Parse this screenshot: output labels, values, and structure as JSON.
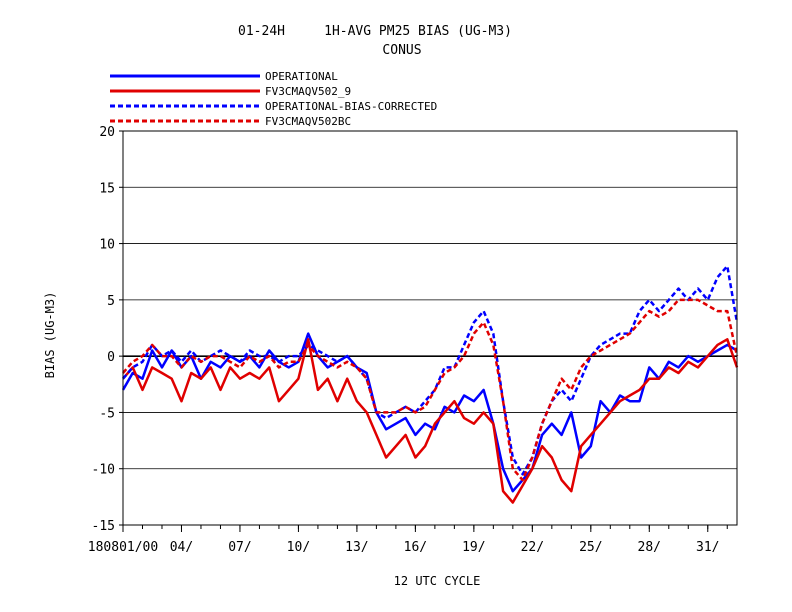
{
  "chart_data": {
    "type": "line",
    "title": "01-24H     1H-AVG PM25 BIAS (UG-M3)",
    "subtitle": "CONUS",
    "xlabel": "12 UTC CYCLE",
    "ylabel": "BIAS (UG-M3)",
    "ylim": [
      -15,
      20
    ],
    "yticks": [
      -15,
      -10,
      -5,
      0,
      5,
      10,
      15,
      20
    ],
    "xlim": [
      0,
      31.5
    ],
    "xticks": [
      {
        "x": 0,
        "label": "180801/00"
      },
      {
        "x": 3,
        "label": "04/"
      },
      {
        "x": 6,
        "label": "07/"
      },
      {
        "x": 9,
        "label": "10/"
      },
      {
        "x": 12,
        "label": "13/"
      },
      {
        "x": 15,
        "label": "16/"
      },
      {
        "x": 18,
        "label": "19/"
      },
      {
        "x": 21,
        "label": "22/"
      },
      {
        "x": 24,
        "label": "25/"
      },
      {
        "x": 27,
        "label": "28/"
      },
      {
        "x": 30,
        "label": "31/"
      }
    ],
    "grid": "horizontal",
    "legend_position": "top-left",
    "series": [
      {
        "name": "OPERATIONAL",
        "color": "#0000ff",
        "style": "solid",
        "x": [
          0,
          0.5,
          1,
          1.5,
          2,
          2.5,
          3,
          3.5,
          4,
          4.5,
          5,
          5.5,
          6,
          6.5,
          7,
          7.5,
          8,
          8.5,
          9,
          9.5,
          10,
          10.5,
          11,
          11.5,
          12,
          12.5,
          13,
          13.5,
          14,
          14.5,
          15,
          15.5,
          16,
          16.5,
          17,
          17.5,
          18,
          18.5,
          19,
          19.5,
          20,
          20.5,
          21,
          21.5,
          22,
          22.5,
          23,
          23.5,
          24,
          24.5,
          25,
          25.5,
          26,
          26.5,
          27,
          27.5,
          28,
          28.5,
          29,
          29.5,
          30,
          30.5,
          31,
          31.5
        ],
        "y": [
          -3,
          -1.5,
          -2,
          0.5,
          -1,
          0.5,
          -1,
          0,
          -2,
          -0.5,
          -1,
          0,
          -0.5,
          0,
          -1,
          0.5,
          -0.5,
          -1,
          -0.5,
          2,
          0,
          -1,
          -0.5,
          0,
          -1,
          -1.5,
          -5,
          -6.5,
          -6,
          -5.5,
          -7,
          -6,
          -6.5,
          -4.5,
          -5,
          -3.5,
          -4,
          -3,
          -6,
          -10,
          -12,
          -11,
          -10,
          -7,
          -6,
          -7,
          -5,
          -9,
          -8,
          -4,
          -5,
          -3.5,
          -4,
          -4,
          -1,
          -2,
          -0.5,
          -1,
          0,
          -0.5,
          0,
          0.5,
          1,
          0.5
        ]
      },
      {
        "name": "FV3CMAQV502_9",
        "color": "#e00000",
        "style": "solid",
        "x": [
          0,
          0.5,
          1,
          1.5,
          2,
          2.5,
          3,
          3.5,
          4,
          4.5,
          5,
          5.5,
          6,
          6.5,
          7,
          7.5,
          8,
          8.5,
          9,
          9.5,
          10,
          10.5,
          11,
          11.5,
          12,
          12.5,
          13,
          13.5,
          14,
          14.5,
          15,
          15.5,
          16,
          16.5,
          17,
          17.5,
          18,
          18.5,
          19,
          19.5,
          20,
          20.5,
          21,
          21.5,
          22,
          22.5,
          23,
          23.5,
          24,
          24.5,
          25,
          25.5,
          26,
          26.5,
          27,
          27.5,
          28,
          28.5,
          29,
          29.5,
          30,
          30.5,
          31,
          31.5
        ],
        "y": [
          -2,
          -1,
          -3,
          -1,
          -1.5,
          -2,
          -4,
          -1.5,
          -2,
          -1,
          -3,
          -1,
          -2,
          -1.5,
          -2,
          -1,
          -4,
          -3,
          -2,
          1.5,
          -3,
          -2,
          -4,
          -2,
          -4,
          -5,
          -7,
          -9,
          -8,
          -7,
          -9,
          -8,
          -6,
          -5,
          -4,
          -5.5,
          -6,
          -5,
          -6,
          -12,
          -13,
          -11.5,
          -10,
          -8,
          -9,
          -11,
          -12,
          -8,
          -7,
          -6,
          -5,
          -4,
          -3.5,
          -3,
          -2,
          -2,
          -1,
          -1.5,
          -0.5,
          -1,
          0,
          1,
          1.5,
          -1
        ]
      },
      {
        "name": "OPERATIONAL-BIAS-CORRECTED",
        "color": "#0000ff",
        "style": "dashed",
        "x": [
          0,
          0.5,
          1,
          1.5,
          2,
          2.5,
          3,
          3.5,
          4,
          4.5,
          5,
          5.5,
          6,
          6.5,
          7,
          7.5,
          8,
          8.5,
          9,
          9.5,
          10,
          10.5,
          11,
          11.5,
          12,
          12.5,
          13,
          13.5,
          14,
          14.5,
          15,
          15.5,
          16,
          16.5,
          17,
          17.5,
          18,
          18.5,
          19,
          19.5,
          20,
          20.5,
          21,
          21.5,
          22,
          22.5,
          23,
          23.5,
          24,
          24.5,
          25,
          25.5,
          26,
          26.5,
          27,
          27.5,
          28,
          28.5,
          29,
          29.5,
          30,
          30.5,
          31,
          31.5
        ],
        "y": [
          -2,
          -1,
          -0.5,
          1,
          0,
          0.5,
          -0.5,
          0.5,
          -0.5,
          0,
          0.5,
          0,
          -0.5,
          0.5,
          0,
          0,
          -0.5,
          0,
          0,
          1,
          0.5,
          0,
          -0.5,
          0,
          -1,
          -2,
          -5,
          -5.5,
          -5,
          -4.5,
          -5,
          -4,
          -3,
          -1,
          -1,
          1,
          3,
          4,
          2,
          -4,
          -9,
          -10.5,
          -9,
          -6,
          -4,
          -3,
          -4,
          -2,
          0,
          1,
          1.5,
          2,
          2,
          4,
          5,
          4,
          5,
          6,
          5,
          6,
          5,
          7,
          8,
          3
        ]
      },
      {
        "name": "FV3CMAQV502BC",
        "color": "#e00000",
        "style": "dashed",
        "x": [
          0,
          0.5,
          1,
          1.5,
          2,
          2.5,
          3,
          3.5,
          4,
          4.5,
          5,
          5.5,
          6,
          6.5,
          7,
          7.5,
          8,
          8.5,
          9,
          9.5,
          10,
          10.5,
          11,
          11.5,
          12,
          12.5,
          13,
          13.5,
          14,
          14.5,
          15,
          15.5,
          16,
          16.5,
          17,
          17.5,
          18,
          18.5,
          19,
          19.5,
          20,
          20.5,
          21,
          21.5,
          22,
          22.5,
          23,
          23.5,
          24,
          24.5,
          25,
          25.5,
          26,
          26.5,
          27,
          27.5,
          28,
          28.5,
          29,
          29.5,
          30,
          30.5,
          31,
          31.5
        ],
        "y": [
          -1.5,
          -0.5,
          0,
          1,
          0,
          0,
          -1,
          0,
          -0.5,
          0,
          0,
          -0.5,
          -1,
          0,
          -0.5,
          0,
          -1,
          -0.5,
          -0.5,
          1,
          0,
          -0.5,
          -1,
          -0.5,
          -1,
          -2,
          -5,
          -5,
          -5,
          -4.5,
          -5,
          -4.5,
          -3,
          -1.5,
          -1,
          0,
          2,
          3,
          1,
          -4,
          -10,
          -11,
          -9,
          -6,
          -4,
          -2,
          -3,
          -1,
          0,
          0.5,
          1,
          1.5,
          2,
          3,
          4,
          3.5,
          4,
          5,
          5,
          5,
          4.5,
          4,
          4,
          0
        ]
      }
    ],
    "zero_line": true
  }
}
